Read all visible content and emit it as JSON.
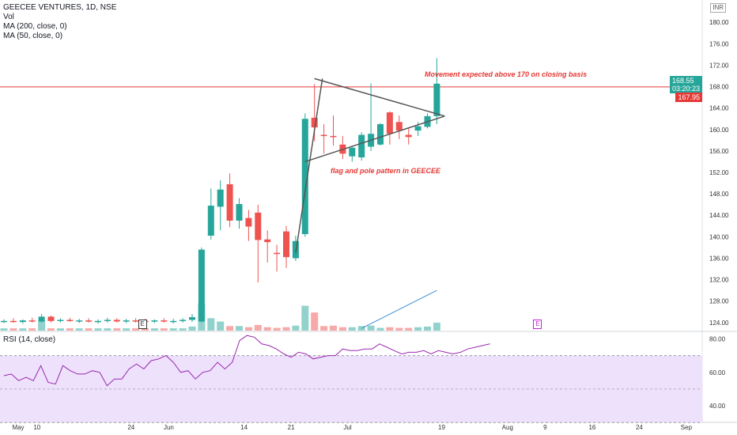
{
  "header": {
    "title": "GEECEE VENTURES, 1D, NSE",
    "indicators": [
      "Vol",
      "MA (200, close, 0)",
      "MA (50, close, 0)"
    ],
    "rsi_label": "RSI (14, close)",
    "currency": "INR"
  },
  "annotations": {
    "breakout_note": "Movement expected above 170 on closing basis",
    "pattern_note": "flag and pole pattern in GEECEE"
  },
  "price_tags": {
    "last_price": "168.55",
    "countdown": "03:20:23",
    "line_level": "167.95"
  },
  "earnings_markers": [
    "E",
    "E"
  ],
  "colors": {
    "up": "#26a69a",
    "down": "#ef5350",
    "rsi": "#9c27b0",
    "rsi_band": "#ede1fb",
    "hline": "#e53935",
    "trend": "#555555",
    "volume_trend": "#3d8fd8"
  },
  "chart_data": {
    "type": "candlestick",
    "price_axis": {
      "ticks": [
        "180.00",
        "176.00",
        "172.00",
        "168.00",
        "164.00",
        "160.00",
        "156.00",
        "152.00",
        "148.00",
        "144.00",
        "140.00",
        "136.00",
        "132.00",
        "128.00",
        "124.00"
      ],
      "range": [
        122.5,
        181.5
      ]
    },
    "rsi_axis": {
      "ticks": [
        "80.00",
        "60.00",
        "40.00"
      ],
      "range": [
        32,
        84
      ],
      "band": [
        30,
        70
      ],
      "midline": 50
    },
    "time_axis": {
      "labels": [
        "May",
        "10",
        "24",
        "Jun",
        "14",
        "21",
        "Jul",
        "19",
        "Aug",
        "9",
        "16",
        "24",
        "Sep"
      ],
      "label_days": [
        0,
        2,
        12,
        16,
        24,
        29,
        35,
        45,
        52,
        56,
        61,
        66,
        71
      ],
      "total_days": 74
    },
    "horizontal_line": 167.95,
    "candles": [
      {
        "d": 0,
        "o": 124.2,
        "h": 124.6,
        "l": 123.9,
        "c": 124.3
      },
      {
        "d": 1,
        "o": 124.3,
        "h": 124.8,
        "l": 124.0,
        "c": 124.1
      },
      {
        "d": 2,
        "o": 124.1,
        "h": 124.6,
        "l": 123.8,
        "c": 124.4
      },
      {
        "d": 3,
        "o": 124.4,
        "h": 124.9,
        "l": 124.0,
        "c": 124.2
      },
      {
        "d": 4,
        "o": 124.2,
        "h": 125.6,
        "l": 124.0,
        "c": 125.1
      },
      {
        "d": 5,
        "o": 125.1,
        "h": 125.3,
        "l": 124.0,
        "c": 124.3
      },
      {
        "d": 6,
        "o": 124.3,
        "h": 124.8,
        "l": 124.0,
        "c": 124.5
      },
      {
        "d": 7,
        "o": 124.5,
        "h": 124.9,
        "l": 124.1,
        "c": 124.3
      },
      {
        "d": 8,
        "o": 124.3,
        "h": 124.7,
        "l": 123.9,
        "c": 124.4
      },
      {
        "d": 9,
        "o": 124.4,
        "h": 124.8,
        "l": 124.0,
        "c": 124.2
      },
      {
        "d": 10,
        "o": 124.2,
        "h": 124.6,
        "l": 123.8,
        "c": 124.3
      },
      {
        "d": 11,
        "o": 124.3,
        "h": 124.9,
        "l": 124.0,
        "c": 124.5
      },
      {
        "d": 12,
        "o": 124.5,
        "h": 124.8,
        "l": 124.0,
        "c": 124.2
      },
      {
        "d": 13,
        "o": 124.2,
        "h": 124.7,
        "l": 123.9,
        "c": 124.4
      },
      {
        "d": 14,
        "o": 124.4,
        "h": 124.8,
        "l": 124.0,
        "c": 124.3
      },
      {
        "d": 15,
        "o": 124.3,
        "h": 124.7,
        "l": 123.9,
        "c": 124.2
      },
      {
        "d": 16,
        "o": 124.2,
        "h": 124.6,
        "l": 123.9,
        "c": 124.4
      },
      {
        "d": 17,
        "o": 124.4,
        "h": 124.8,
        "l": 124.0,
        "c": 124.2
      },
      {
        "d": 18,
        "o": 124.2,
        "h": 124.7,
        "l": 123.8,
        "c": 124.3
      },
      {
        "d": 19,
        "o": 124.3,
        "h": 124.8,
        "l": 124.0,
        "c": 124.5
      },
      {
        "d": 20,
        "o": 124.5,
        "h": 125.6,
        "l": 124.1,
        "c": 125.0
      },
      {
        "d": 21,
        "o": 124.2,
        "h": 138.0,
        "l": 124.0,
        "c": 137.6
      },
      {
        "d": 22,
        "o": 140.2,
        "h": 149.0,
        "l": 139.5,
        "c": 145.8
      },
      {
        "d": 23,
        "o": 145.6,
        "h": 150.5,
        "l": 141.2,
        "c": 148.8
      },
      {
        "d": 24,
        "o": 149.8,
        "h": 151.8,
        "l": 141.8,
        "c": 143.0
      },
      {
        "d": 25,
        "o": 143.0,
        "h": 147.2,
        "l": 141.5,
        "c": 146.1
      },
      {
        "d": 26,
        "o": 143.5,
        "h": 145.0,
        "l": 139.2,
        "c": 141.9
      },
      {
        "d": 27,
        "o": 144.5,
        "h": 146.0,
        "l": 131.5,
        "c": 139.4
      },
      {
        "d": 28,
        "o": 139.5,
        "h": 141.2,
        "l": 135.2,
        "c": 139.0
      },
      {
        "d": 29,
        "o": 137.0,
        "h": 138.5,
        "l": 133.5,
        "c": 136.8
      },
      {
        "d": 30,
        "o": 141.0,
        "h": 142.0,
        "l": 134.2,
        "c": 136.2
      },
      {
        "d": 31,
        "o": 136.0,
        "h": 140.2,
        "l": 135.5,
        "c": 139.2
      },
      {
        "d": 32,
        "o": 140.5,
        "h": 163.0,
        "l": 140.0,
        "c": 162.0
      },
      {
        "d": 33,
        "o": 162.2,
        "h": 168.5,
        "l": 157.8,
        "c": 160.4
      },
      {
        "d": 34,
        "o": 159.0,
        "h": 161.0,
        "l": 155.5,
        "c": 158.8
      },
      {
        "d": 35,
        "o": 158.8,
        "h": 162.6,
        "l": 157.0,
        "c": 158.6
      },
      {
        "d": 36,
        "o": 157.2,
        "h": 158.8,
        "l": 154.5,
        "c": 155.5
      },
      {
        "d": 37,
        "o": 155.0,
        "h": 156.8,
        "l": 154.0,
        "c": 156.6
      },
      {
        "d": 38,
        "o": 154.8,
        "h": 159.5,
        "l": 154.2,
        "c": 159.0
      },
      {
        "d": 39,
        "o": 156.8,
        "h": 168.6,
        "l": 156.0,
        "c": 159.2
      },
      {
        "d": 40,
        "o": 157.2,
        "h": 161.2,
        "l": 157.0,
        "c": 161.0
      },
      {
        "d": 41,
        "o": 163.2,
        "h": 163.4,
        "l": 157.2,
        "c": 159.2
      },
      {
        "d": 42,
        "o": 161.4,
        "h": 162.6,
        "l": 158.2,
        "c": 159.8
      },
      {
        "d": 43,
        "o": 159.0,
        "h": 160.4,
        "l": 157.2,
        "c": 158.6
      },
      {
        "d": 44,
        "o": 159.8,
        "h": 161.4,
        "l": 158.8,
        "c": 160.6
      },
      {
        "d": 45,
        "o": 160.5,
        "h": 163.0,
        "l": 160.2,
        "c": 162.5
      },
      {
        "d": 46,
        "o": 162.5,
        "h": 173.3,
        "l": 161.0,
        "c": 168.55
      }
    ],
    "volume": [
      1,
      1,
      1,
      1,
      4.5,
      1,
      1,
      1,
      1,
      1,
      1,
      1,
      1,
      1,
      1,
      1,
      1,
      1,
      1,
      1,
      1.8,
      12,
      5.5,
      4,
      2,
      2,
      1.5,
      2.5,
      1.5,
      1.2,
      1.5,
      2.2,
      11,
      8,
      2,
      2.2,
      1.5,
      1.5,
      2,
      2.2,
      1.2,
      1.5,
      1.2,
      1.2,
      1.5,
      1.8,
      3.5
    ],
    "rsi": [
      58,
      59,
      55,
      57,
      55,
      64,
      54,
      53,
      64,
      61,
      59,
      59,
      61,
      60,
      52,
      56,
      56,
      62,
      65,
      62,
      67,
      68,
      70,
      66,
      60,
      61,
      56,
      60,
      61,
      66,
      62,
      66,
      79,
      82,
      81,
      77,
      76,
      74,
      71,
      69,
      72,
      71,
      68,
      69,
      70,
      70,
      74,
      73,
      73,
      74,
      74,
      77,
      75,
      73,
      71,
      72,
      72,
      73,
      71,
      73,
      72,
      71,
      72,
      74,
      75,
      76,
      77
    ],
    "rsi_days_start": 0,
    "trendlines": [
      {
        "from": [
          31,
          137.0
        ],
        "to": [
          33,
          169.5
        ]
      },
      {
        "from": [
          33,
          169.5
        ],
        "to": [
          46,
          162.5
        ]
      },
      {
        "from": [
          32,
          154.0
        ],
        "to": [
          46,
          162.5
        ]
      }
    ],
    "volume_trendline": {
      "from": [
        38,
        1.0
      ],
      "to": [
        46,
        11.5
      ]
    },
    "earnings_days": [
      14,
      56
    ]
  }
}
